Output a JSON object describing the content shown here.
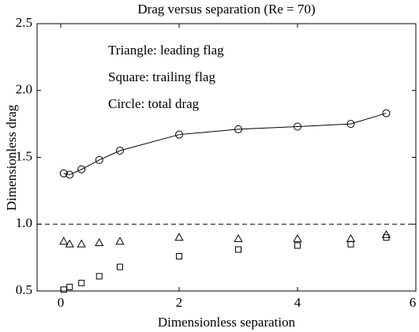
{
  "chart_data": {
    "type": "scatter",
    "title": "Drag versus separation (Re = 70)",
    "xlabel": "Dimensionless separation",
    "ylabel": "Dimensionless drag",
    "xlim": [
      -0.4,
      6
    ],
    "xticks": [
      0,
      2,
      4,
      6
    ],
    "ylim": [
      0.5,
      2.5
    ],
    "yticks": [
      0.5,
      {
        "value": 1,
        "label": "1.0"
      },
      1.5,
      {
        "value": 2,
        "label": "2.0"
      },
      2.5
    ],
    "grid": false,
    "reference_line": 1,
    "x": [
      0.05,
      0.15,
      0.35,
      0.65,
      1,
      2,
      3,
      4,
      4.9,
      5.5
    ],
    "series": [
      {
        "name": "Triangle: leading flag",
        "marker": "triangle",
        "line": false,
        "color": "#000000",
        "values": [
          0.87,
          0.85,
          0.85,
          0.86,
          0.87,
          0.9,
          0.89,
          0.89,
          0.89,
          0.92
        ]
      },
      {
        "name": "Square: trailing flag",
        "marker": "square",
        "line": false,
        "color": "#000000",
        "values": [
          0.51,
          0.53,
          0.56,
          0.61,
          0.68,
          0.76,
          0.81,
          0.84,
          0.85,
          0.9
        ]
      },
      {
        "name": "Circle: total drag",
        "marker": "circle",
        "line": true,
        "color": "#000000",
        "values": [
          1.38,
          1.37,
          1.41,
          1.48,
          1.55,
          1.67,
          1.71,
          1.73,
          1.75,
          1.83
        ]
      }
    ]
  }
}
